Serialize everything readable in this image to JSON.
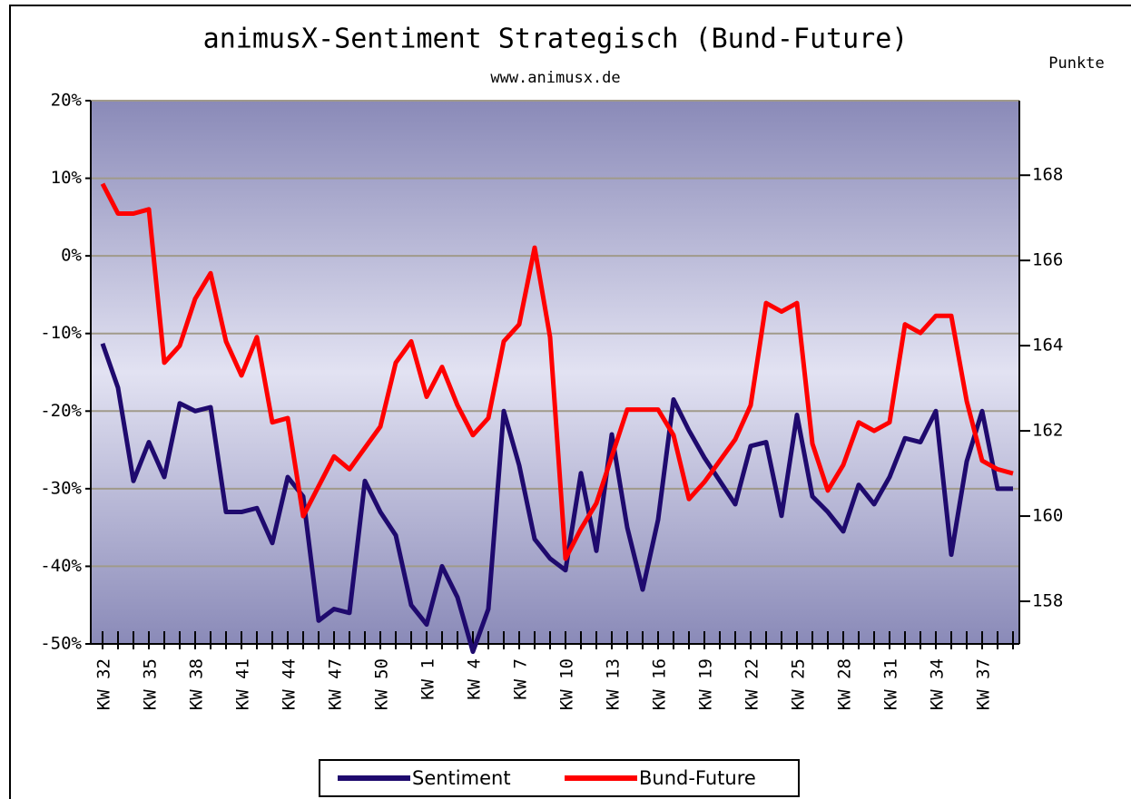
{
  "chart_data": {
    "type": "line",
    "title": "animusX-Sentiment Strategisch (Bund-Future)",
    "subtitle": "www.animusx.de",
    "y2_label": "Punkte",
    "grid": true,
    "legend": "bottom",
    "categories": [
      "KW 32",
      null,
      null,
      "KW 35",
      null,
      null,
      "KW 38",
      null,
      null,
      "KW 41",
      null,
      null,
      "KW 44",
      null,
      null,
      "KW 47",
      null,
      null,
      "KW 50",
      null,
      null,
      "KW 1",
      null,
      null,
      "KW 4",
      null,
      null,
      "KW 7",
      null,
      null,
      "KW 10",
      null,
      null,
      "KW 13",
      null,
      null,
      "KW 16",
      null,
      null,
      "KW 19",
      null,
      null,
      "KW 22",
      null,
      null,
      "KW 25",
      null,
      null,
      "KW 28",
      null,
      null,
      "KW 31",
      null,
      null,
      "KW 34",
      null,
      null,
      "KW 37",
      null,
      null
    ],
    "ylim": [
      -50,
      20
    ],
    "yticks": [
      {
        "value": 20,
        "label": "20%"
      },
      {
        "value": 10,
        "label": "10%"
      },
      {
        "value": 0,
        "label": "0%"
      },
      {
        "value": -10,
        "label": "-10%"
      },
      {
        "value": -20,
        "label": "-20%"
      },
      {
        "value": -30,
        "label": "-30%"
      },
      {
        "value": -40,
        "label": "-40%"
      },
      {
        "value": -50,
        "label": "-50%"
      }
    ],
    "y2lim": [
      157.0,
      169.75
    ],
    "y2ticks": [
      158,
      160,
      162,
      164,
      166,
      168
    ],
    "series": [
      {
        "name": "Sentiment",
        "color": "#1f0a6e",
        "values": [
          -11.3,
          -17,
          -29,
          -24,
          -28.5,
          -19,
          -20,
          -19.5,
          -33,
          -33,
          -32.5,
          -37,
          -28.5,
          -31,
          -47,
          -45.5,
          -46,
          -29,
          -33,
          -36,
          -45,
          -47.5,
          -40,
          -44,
          -51,
          -45.5,
          -20,
          -27,
          -36.5,
          -39,
          -40.5,
          -28,
          -38,
          -23,
          -35,
          -43,
          -34,
          -18.5,
          -22.5,
          -26,
          -29,
          -32,
          -24.5,
          -24,
          -33.5,
          -20.5,
          -31,
          -33,
          -35.5,
          -29.5,
          -32,
          -28.5,
          -23.5,
          -24,
          -20,
          -38.5,
          -26.5,
          -20,
          -30,
          -30
        ]
      },
      {
        "name": "Bund-Future",
        "color": "#ff0000",
        "axis": "y2",
        "values": [
          167.8,
          167.1,
          167.1,
          167.2,
          163.6,
          164.0,
          165.1,
          165.7,
          164.1,
          163.3,
          164.2,
          162.2,
          162.3,
          160.0,
          160.7,
          161.4,
          161.1,
          161.6,
          162.1,
          163.6,
          164.1,
          162.8,
          163.5,
          162.6,
          161.9,
          162.3,
          164.1,
          164.5,
          166.3,
          164.2,
          159.0,
          159.7,
          160.3,
          161.4,
          162.5,
          162.5,
          162.5,
          161.9,
          160.4,
          160.8,
          161.3,
          161.8,
          162.6,
          165.0,
          164.8,
          165.0,
          161.7,
          160.6,
          161.2,
          162.2,
          162.0,
          162.2,
          164.5,
          164.3,
          164.7,
          164.7,
          162.7,
          161.3,
          161.1,
          161.0
        ]
      }
    ]
  }
}
